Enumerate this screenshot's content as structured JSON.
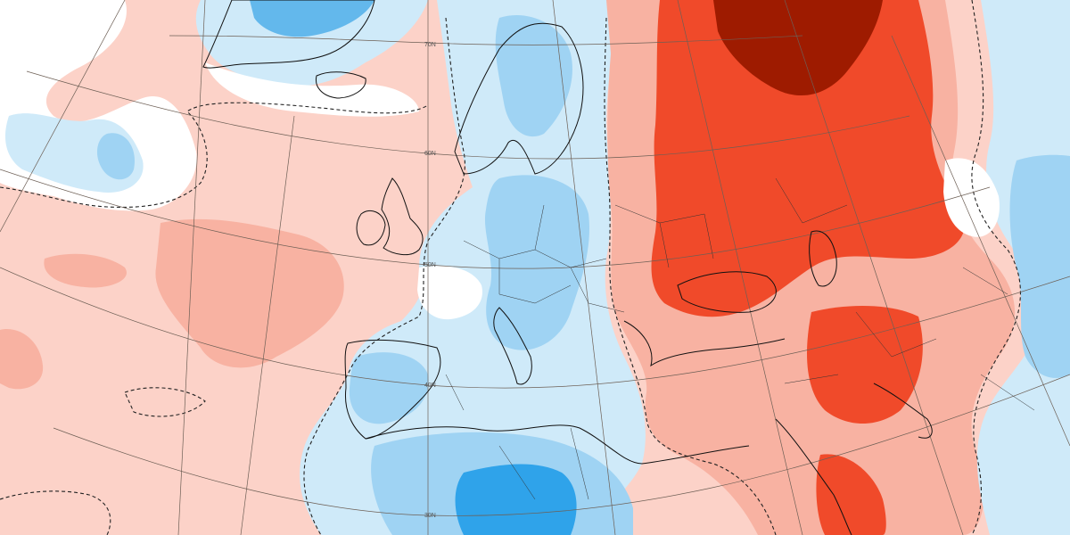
{
  "map": {
    "latitude_labels": [
      "70N",
      "60N",
      "50N",
      "40N",
      "30N"
    ],
    "colors": {
      "strong_warm": "#9e1b00",
      "warm_4": "#f04a2a",
      "warm_3": "#f59a82",
      "warm_2": "#f8b2a2",
      "warm_1": "#fcd2c8",
      "neutral": "#ffffff",
      "cool_1": "#cfeaf9",
      "cool_2": "#9fd3f3",
      "cool_3": "#63b8ec",
      "cool_4": "#2fa3ea"
    }
  }
}
